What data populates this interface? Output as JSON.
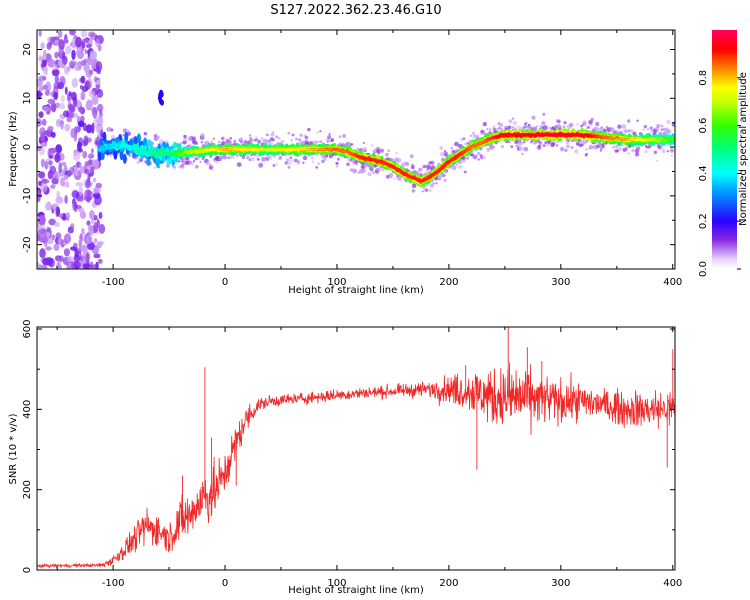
{
  "title": "S127.2022.362.23.46.G10",
  "chart_data": [
    {
      "type": "heatmap",
      "xlabel": "Height of straight line (km)",
      "ylabel": "Frequency (Hz)",
      "xlim": [
        -168,
        402
      ],
      "ylim": [
        -25,
        24
      ],
      "x_ticks": [
        -100,
        0,
        100,
        200,
        300,
        400
      ],
      "y_ticks": [
        -20,
        -10,
        0,
        10,
        20
      ],
      "colorbar": {
        "label": "Normalized spectral amplitude",
        "range": [
          0.0,
          1.0
        ],
        "ticks": [
          0.0,
          0.2,
          0.4,
          0.6,
          0.8
        ],
        "tick_labels": [
          "0.0",
          "0.2",
          "0.4",
          "0.6",
          "0.8"
        ]
      },
      "ridge": {
        "x": [
          -110,
          -90,
          -70,
          -50,
          -30,
          -10,
          0,
          20,
          40,
          60,
          80,
          100,
          110,
          120,
          130,
          140,
          150,
          160,
          170,
          175,
          180,
          190,
          200,
          210,
          220,
          230,
          240,
          250,
          260,
          280,
          300,
          320,
          340,
          360,
          380,
          400
        ],
        "frequency": [
          0,
          0.5,
          -1,
          -1.5,
          -1,
          -0.5,
          -0.5,
          -0.5,
          -0.5,
          -0.5,
          -0.5,
          -0.5,
          -1,
          -2,
          -2.5,
          -3,
          -4,
          -5.5,
          -6.5,
          -7,
          -6.5,
          -5,
          -3,
          -1.5,
          0,
          1,
          2,
          2.5,
          2.5,
          2.5,
          2.5,
          2.5,
          2,
          1.5,
          1.5,
          1.5
        ],
        "amplitude": [
          0.35,
          0.4,
          0.45,
          0.5,
          0.7,
          0.75,
          0.8,
          0.75,
          0.7,
          0.75,
          0.8,
          0.85,
          0.85,
          0.9,
          0.9,
          0.9,
          0.9,
          0.9,
          0.9,
          0.9,
          0.9,
          0.9,
          0.9,
          0.9,
          0.85,
          0.85,
          0.9,
          0.95,
          0.95,
          0.95,
          0.95,
          0.95,
          0.85,
          0.8,
          0.7,
          0.6
        ]
      },
      "noise_region": {
        "x": [
          -168,
          -110
        ],
        "frequency": [
          -25,
          24
        ],
        "amplitude": [
          0.0,
          0.15
        ]
      },
      "isolated_feature": {
        "x": -58,
        "frequency": [
          9,
          12
        ],
        "amplitude": 0.2
      }
    },
    {
      "type": "line",
      "xlabel": "Height of straight line (km)",
      "ylabel": "SNR (10 * v/v)",
      "xlim": [
        -168,
        402
      ],
      "ylim": [
        0,
        605
      ],
      "x_ticks": [
        -100,
        0,
        100,
        200,
        300,
        400
      ],
      "y_ticks": [
        0,
        200,
        400,
        600
      ],
      "color": "#f02828",
      "envelope": {
        "x": [
          -168,
          -110,
          -100,
          -90,
          -80,
          -70,
          -60,
          -50,
          -40,
          -30,
          -20,
          -10,
          0,
          10,
          20,
          30,
          40,
          60,
          80,
          100,
          120,
          150,
          180,
          200,
          220,
          240,
          260,
          280,
          300,
          320,
          340,
          360,
          380,
          400
        ],
        "center": [
          10,
          12,
          25,
          50,
          80,
          110,
          100,
          80,
          120,
          140,
          180,
          190,
          240,
          320,
          380,
          410,
          420,
          425,
          430,
          435,
          440,
          445,
          450,
          450,
          445,
          430,
          430,
          425,
          420,
          420,
          410,
          400,
          400,
          400
        ],
        "spread": [
          4,
          5,
          15,
          25,
          35,
          45,
          45,
          35,
          60,
          60,
          70,
          70,
          55,
          45,
          30,
          20,
          15,
          15,
          15,
          15,
          15,
          15,
          20,
          35,
          55,
          75,
          85,
          65,
          55,
          45,
          40,
          45,
          50,
          50
        ]
      },
      "spikes": [
        {
          "x": -38,
          "y": 235
        },
        {
          "x": -18,
          "y": 505
        },
        {
          "x": -12,
          "y": 330
        },
        {
          "x": 10,
          "y": 210
        },
        {
          "x": 215,
          "y": 510
        },
        {
          "x": 225,
          "y": 250
        },
        {
          "x": 253,
          "y": 605
        },
        {
          "x": 270,
          "y": 555
        },
        {
          "x": 283,
          "y": 520
        },
        {
          "x": 395,
          "y": 255
        },
        {
          "x": 400,
          "y": 550
        }
      ]
    }
  ]
}
